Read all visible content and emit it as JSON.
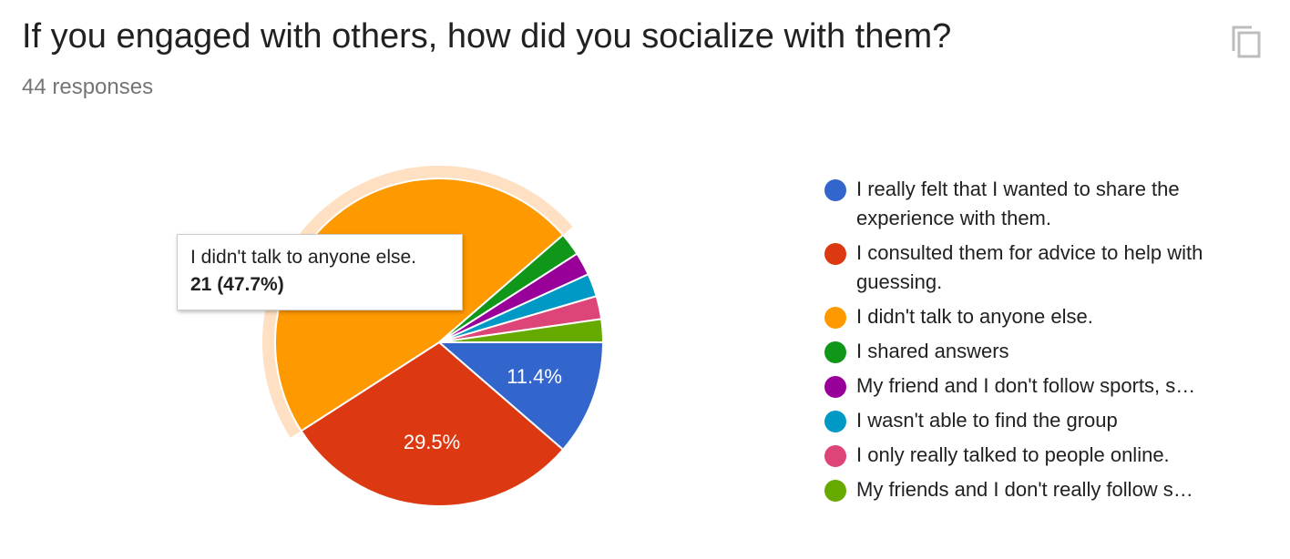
{
  "header": {
    "title": "If you engaged with others, how did you socialize with them?",
    "responses": "44 responses",
    "copy_icon": "copy-icon"
  },
  "chart_data": {
    "type": "pie",
    "title": "",
    "total": 44,
    "slices": [
      {
        "label": "I really felt that I wanted to share the experience with them.",
        "count": 5,
        "percent": 11.4,
        "color": "#3366cc",
        "value_label": "11.4%"
      },
      {
        "label": "I consulted them for advice to help with guessing.",
        "count": 13,
        "percent": 29.5,
        "color": "#dc3912",
        "value_label": "29.5%"
      },
      {
        "label": "I didn't talk to anyone else.",
        "count": 21,
        "percent": 47.7,
        "color": "#ff9900",
        "value_label": ""
      },
      {
        "label": "I shared answers",
        "count": 1,
        "percent": 2.3,
        "color": "#109618",
        "value_label": ""
      },
      {
        "label": "My friend and I don't follow sports, s…",
        "count": 1,
        "percent": 2.3,
        "color": "#990099",
        "value_label": ""
      },
      {
        "label": "I wasn't able to find the group",
        "count": 1,
        "percent": 2.3,
        "color": "#0099c6",
        "value_label": ""
      },
      {
        "label": "I only really talked to people online.",
        "count": 1,
        "percent": 2.3,
        "color": "#dd4477",
        "value_label": ""
      },
      {
        "label": "My friends and I don't really follow s…",
        "count": 1,
        "percent": 2.3,
        "color": "#66aa00",
        "value_label": ""
      }
    ],
    "highlighted_index": 2,
    "highlight_color": "#ffe0c2",
    "legend_position": "right",
    "tooltip": {
      "label": "I didn't talk to anyone else.",
      "value": "21 (47.7%)"
    }
  }
}
